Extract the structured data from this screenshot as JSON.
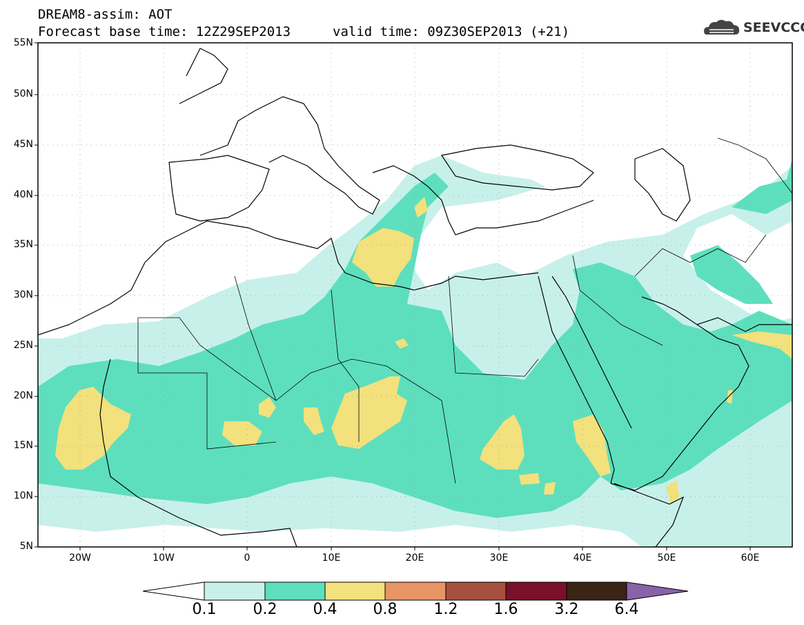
{
  "header": {
    "title_line1": "DREAM8-assim: AOT",
    "title_line2": "Forecast base time: 12Z29SEP2013",
    "valid_time": "valid time: 09Z30SEP2013 (+21)",
    "logo_text": "SEEVCCC"
  },
  "axes": {
    "y_labels": [
      "55N",
      "50N",
      "45N",
      "40N",
      "35N",
      "30N",
      "25N",
      "20N",
      "15N",
      "10N",
      "5N"
    ],
    "x_labels": [
      "20W",
      "10W",
      "0",
      "10E",
      "20E",
      "30E",
      "40E",
      "50E",
      "60E"
    ],
    "lat_range": [
      5,
      55
    ],
    "lon_range": [
      -25,
      65
    ]
  },
  "colorbar": {
    "labels": [
      "0.1",
      "0.2",
      "0.4",
      "0.8",
      "1.2",
      "1.6",
      "3.2",
      "6.4"
    ],
    "colors": [
      "#c8f0ea",
      "#5ddfbd",
      "#f2e17c",
      "#e79466",
      "#a6513f",
      "#7a1029",
      "#3a2416",
      "#8a62a8"
    ]
  },
  "colors": {
    "aot_0_1": "#c8f0ea",
    "aot_0_2": "#5ddfbd",
    "aot_0_4": "#f2e17c",
    "grid": "#999999"
  }
}
